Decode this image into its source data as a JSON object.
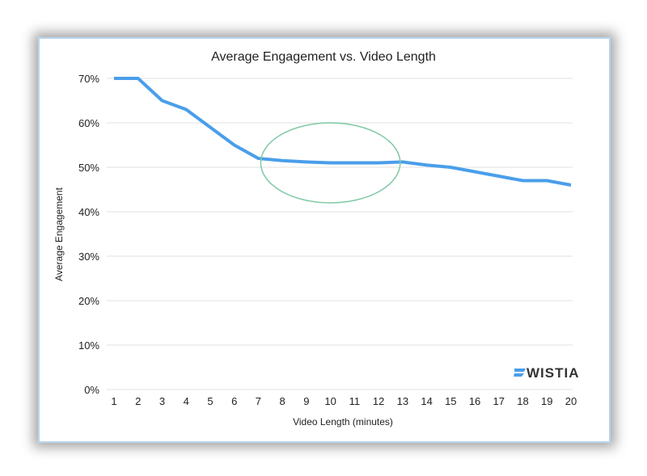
{
  "chart_data": {
    "type": "line",
    "title": "Average Engagement vs. Video Length",
    "xlabel": "Video Length (minutes)",
    "ylabel": "Average Engagement",
    "x": [
      1,
      2,
      3,
      4,
      5,
      6,
      7,
      8,
      9,
      10,
      11,
      12,
      13,
      14,
      15,
      16,
      17,
      18,
      19,
      20
    ],
    "series": [
      {
        "name": "Average Engagement",
        "values": [
          70,
          70,
          65,
          63,
          59,
          55,
          52,
          51.5,
          51.2,
          51,
          51,
          51,
          51.2,
          50.5,
          50,
          49,
          48,
          47,
          47,
          46
        ]
      }
    ],
    "ylim": [
      0,
      70
    ],
    "yticks": [
      0,
      10,
      20,
      30,
      40,
      50,
      60,
      70
    ],
    "ytick_labels": [
      "0%",
      "10%",
      "20%",
      "30%",
      "40%",
      "50%",
      "60%",
      "70%"
    ],
    "xtick_labels": [
      "1",
      "2",
      "3",
      "4",
      "5",
      "6",
      "7",
      "8",
      "9",
      "10",
      "11",
      "12",
      "13",
      "14",
      "15",
      "16",
      "17",
      "18",
      "19",
      "20"
    ],
    "grid": true,
    "highlight": {
      "shape": "ellipse",
      "center_x": 10,
      "center_y": 51,
      "x_radius": 2.9,
      "y_radius": 9
    },
    "colors": {
      "line": "#4a9eea",
      "highlight": "#7fc9a4",
      "grid": "#e6e6e6"
    },
    "logo": "WISTIA"
  }
}
